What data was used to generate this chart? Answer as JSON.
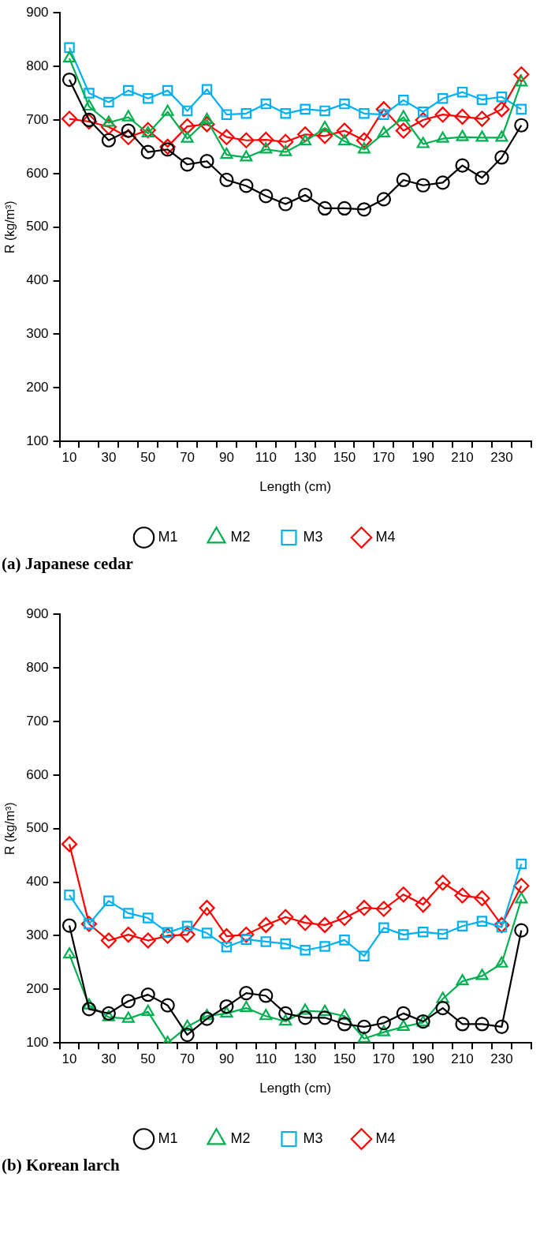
{
  "chart_data": [
    {
      "type": "line",
      "title": "(a) Japanese cedar",
      "xlabel": "Length (cm)",
      "ylabel": "R (kg/m³)",
      "categories": [
        "10",
        null,
        "30",
        null,
        "50",
        null,
        "70",
        null,
        "90",
        null,
        "110",
        null,
        "130",
        null,
        "150",
        null,
        "170",
        null,
        "190",
        null,
        "210",
        null,
        "230",
        null
      ],
      "ylim": [
        100,
        900
      ],
      "yticks": [
        100,
        200,
        300,
        400,
        500,
        600,
        700,
        800,
        900
      ],
      "legend": "bottom",
      "series": [
        {
          "name": "M1",
          "color": "#000000",
          "marker": "circle",
          "values": [
            775,
            700,
            662,
            680,
            640,
            645,
            617,
            623,
            588,
            577,
            558,
            543,
            560,
            535,
            535,
            533,
            552,
            588,
            578,
            583,
            615,
            592,
            630,
            690
          ]
        },
        {
          "name": "M2",
          "color": "#00b050",
          "marker": "triangle",
          "values": [
            815,
            725,
            695,
            705,
            675,
            715,
            665,
            700,
            635,
            630,
            645,
            640,
            660,
            685,
            660,
            645,
            675,
            705,
            655,
            665,
            668,
            667,
            667,
            770
          ]
        },
        {
          "name": "M3",
          "color": "#00b0f0",
          "marker": "square",
          "values": [
            835,
            750,
            733,
            755,
            740,
            755,
            717,
            757,
            710,
            712,
            730,
            712,
            720,
            717,
            730,
            712,
            710,
            737,
            715,
            740,
            752,
            738,
            743,
            720
          ]
        },
        {
          "name": "M4",
          "color": "#ff0000",
          "marker": "diamond",
          "values": [
            702,
            697,
            687,
            668,
            681,
            650,
            688,
            692,
            668,
            662,
            663,
            659,
            673,
            670,
            680,
            662,
            720,
            680,
            700,
            710,
            706,
            702,
            720,
            785
          ]
        }
      ]
    },
    {
      "type": "line",
      "title": "(b) Korean larch",
      "xlabel": "Length (cm)",
      "ylabel": "R (kg/m³)",
      "categories": [
        "10",
        null,
        "30",
        null,
        "50",
        null,
        "70",
        null,
        "90",
        null,
        "110",
        null,
        "130",
        null,
        "150",
        null,
        "170",
        null,
        "190",
        null,
        "210",
        null,
        "230",
        null
      ],
      "ylim": [
        100,
        900
      ],
      "yticks": [
        100,
        200,
        300,
        400,
        500,
        600,
        700,
        800,
        900
      ],
      "legend": "bottom",
      "series": [
        {
          "name": "M1",
          "color": "#000000",
          "marker": "circle",
          "values": [
            319,
            163,
            155,
            178,
            190,
            170,
            115,
            145,
            168,
            193,
            188,
            155,
            147,
            147,
            135,
            130,
            137,
            155,
            140,
            165,
            135,
            135,
            130,
            310
          ]
        },
        {
          "name": "M2",
          "color": "#00b050",
          "marker": "triangle",
          "values": [
            265,
            170,
            148,
            145,
            158,
            100,
            130,
            150,
            155,
            165,
            150,
            140,
            160,
            158,
            150,
            108,
            120,
            130,
            138,
            182,
            215,
            225,
            248,
            368
          ]
        },
        {
          "name": "M3",
          "color": "#00b0f0",
          "marker": "square",
          "values": [
            376,
            322,
            365,
            342,
            333,
            306,
            318,
            305,
            279,
            293,
            289,
            285,
            273,
            280,
            292,
            262,
            315,
            302,
            307,
            303,
            318,
            327,
            316,
            434
          ]
        },
        {
          "name": "M4",
          "color": "#ff0000",
          "marker": "diamond",
          "values": [
            471,
            322,
            291,
            302,
            291,
            300,
            302,
            352,
            299,
            302,
            320,
            335,
            324,
            320,
            333,
            352,
            350,
            377,
            358,
            399,
            375,
            370,
            320,
            393
          ]
        }
      ]
    }
  ]
}
